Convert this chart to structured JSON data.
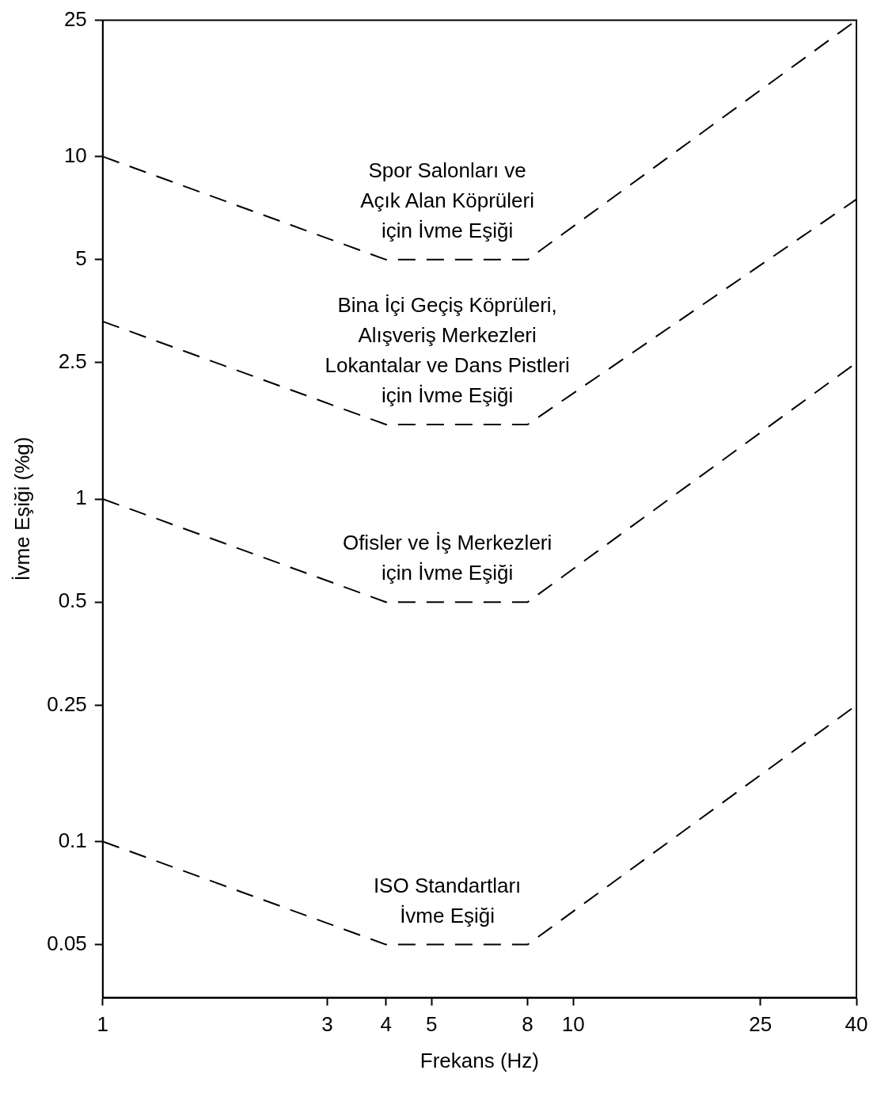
{
  "chart_data": {
    "type": "line",
    "xlabel": "Frekans (Hz)",
    "ylabel": "İvme Eşiği (%g)",
    "x": [
      1,
      4,
      8,
      40
    ],
    "series": [
      {
        "name": "Spor Salonları ve\nAçık Alan Köprüleri\niçin İvme Eşiği",
        "color": "#000000",
        "values": [
          10,
          5,
          5,
          25
        ]
      },
      {
        "name": "Bina İçi Geçiş Köprüleri,\nAlışveriş Merkezleri\nLokantalar ve Dans Pistleri\niçin İvme Eşiği",
        "color": "#000000",
        "values": [
          3.3,
          1.65,
          1.65,
          7.5
        ]
      },
      {
        "name": "Ofisler ve İş Merkezleri\niçin İvme Eşiği",
        "color": "#000000",
        "values": [
          1,
          0.5,
          0.5,
          2.5
        ]
      },
      {
        "name": "ISO Standartları\nİvme Eşiği",
        "color": "#000000",
        "values": [
          0.1,
          0.05,
          0.05,
          0.25
        ]
      }
    ],
    "log": "xy",
    "xlim": [
      1,
      40
    ],
    "xticks": [
      1,
      3,
      4,
      5,
      8,
      10,
      25,
      40
    ],
    "ylim": [
      0.035,
      25
    ],
    "yticks": [
      0.05,
      0.1,
      0.25,
      0.5,
      1,
      2.5,
      5,
      10,
      25
    ],
    "grid": false,
    "legend": false,
    "marker": "none",
    "line_style": "dashed"
  }
}
